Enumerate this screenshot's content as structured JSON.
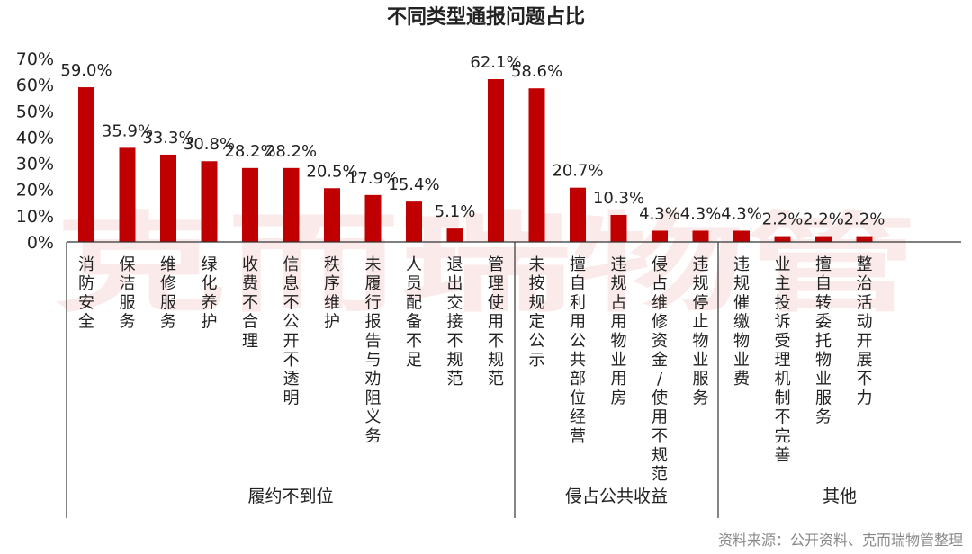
{
  "chart_data": {
    "type": "bar",
    "title": "不同类型通报问题占比",
    "xlabel": "",
    "ylabel": "",
    "ylim": [
      0,
      70
    ],
    "y_ticks": [
      "0%",
      "10%",
      "20%",
      "30%",
      "40%",
      "50%",
      "60%",
      "70%"
    ],
    "bar_color": "#c00000",
    "grid": false,
    "categories": [
      "消防安全",
      "保洁服务",
      "维修服务",
      "绿化养护",
      "收费不合理",
      "信息不公开不透明",
      "秩序维护",
      "未履行报告与劝阻义务",
      "人员配备不足",
      "退出交接不规范",
      "管理使用不规范",
      "未按规定公示",
      "擅自利用公共部位经营",
      "违规占用物业用房",
      "侵占维修资金/使用不规范",
      "违规停止物业服务",
      "违规催缴物业费",
      "业主投诉受理机制不完善",
      "擅自转委托物业服务",
      "整治活动开展不力"
    ],
    "values": [
      59.0,
      35.9,
      33.3,
      30.8,
      28.2,
      28.2,
      20.5,
      17.9,
      15.4,
      5.1,
      62.1,
      58.6,
      20.7,
      10.3,
      4.3,
      4.3,
      4.3,
      2.2,
      2.2,
      2.2
    ],
    "data_labels": [
      "59.0%",
      "35.9%",
      "33.3%",
      "30.8%",
      "28.2%",
      "28.2%",
      "20.5%",
      "17.9%",
      "15.4%",
      "5.1%",
      "62.1%",
      "58.6%",
      "20.7%",
      "10.3%",
      "4.3%",
      "4.3%",
      "4.3%",
      "2.2%",
      "2.2%",
      "2.2%"
    ],
    "groups": [
      {
        "name": "履约不到位",
        "count": 10
      },
      {
        "name": "侵占公共收益",
        "count": 4
      },
      {
        "name": "其他",
        "count": 6
      }
    ]
  },
  "source": "资料来源：公开资料、克而瑞物管整理",
  "watermark": "克而瑞物管"
}
